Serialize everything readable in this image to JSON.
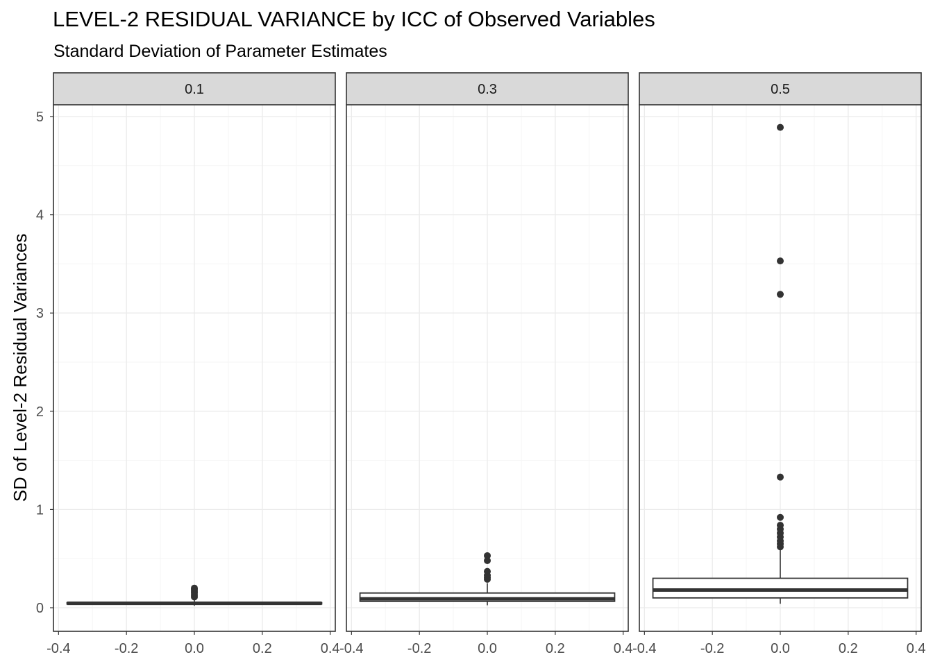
{
  "chart_data": {
    "type": "boxplot",
    "title": "LEVEL-2 RESIDUAL VARIANCE by ICC of Observed Variables",
    "subtitle": "Standard Deviation of Parameter Estimates",
    "ylabel": "SD of Level-2 Residual Variances",
    "xlabel": "",
    "ylim": [
      -0.24,
      5.12
    ],
    "xlim": [
      -0.415,
      0.415
    ],
    "y_ticks": [
      0,
      1,
      2,
      3,
      4,
      5
    ],
    "x_ticks": [
      -0.4,
      -0.2,
      0.0,
      0.2,
      0.4
    ],
    "x_tick_labels": [
      "-0.4",
      "-0.2",
      "0.0",
      "0.2",
      "0.4"
    ],
    "grid": true,
    "box_halfwidth": 0.375,
    "facets": [
      {
        "label": "0.1",
        "box": {
          "whisker_low": 0.02,
          "q1": 0.038,
          "median": 0.045,
          "q3": 0.052,
          "whisker_high": 0.09
        },
        "outliers": [
          0.11,
          0.13,
          0.15,
          0.17,
          0.19,
          0.2
        ]
      },
      {
        "label": "0.3",
        "box": {
          "whisker_low": 0.025,
          "q1": 0.065,
          "median": 0.09,
          "q3": 0.15,
          "whisker_high": 0.25
        },
        "outliers": [
          0.29,
          0.31,
          0.33,
          0.37,
          0.48,
          0.53
        ]
      },
      {
        "label": "0.5",
        "box": {
          "whisker_low": 0.04,
          "q1": 0.1,
          "median": 0.18,
          "q3": 0.3,
          "whisker_high": 0.6
        },
        "outliers": [
          0.62,
          0.65,
          0.68,
          0.72,
          0.76,
          0.8,
          0.84,
          0.92,
          1.33,
          3.19,
          3.53,
          4.89
        ]
      }
    ],
    "colors": {
      "strip_fill": "#d9d9d9",
      "panel_border": "#333333",
      "grid_major": "#ebebeb",
      "grid_minor": "#f5f5f5",
      "box_line": "#333333",
      "outlier": "#333333"
    }
  }
}
